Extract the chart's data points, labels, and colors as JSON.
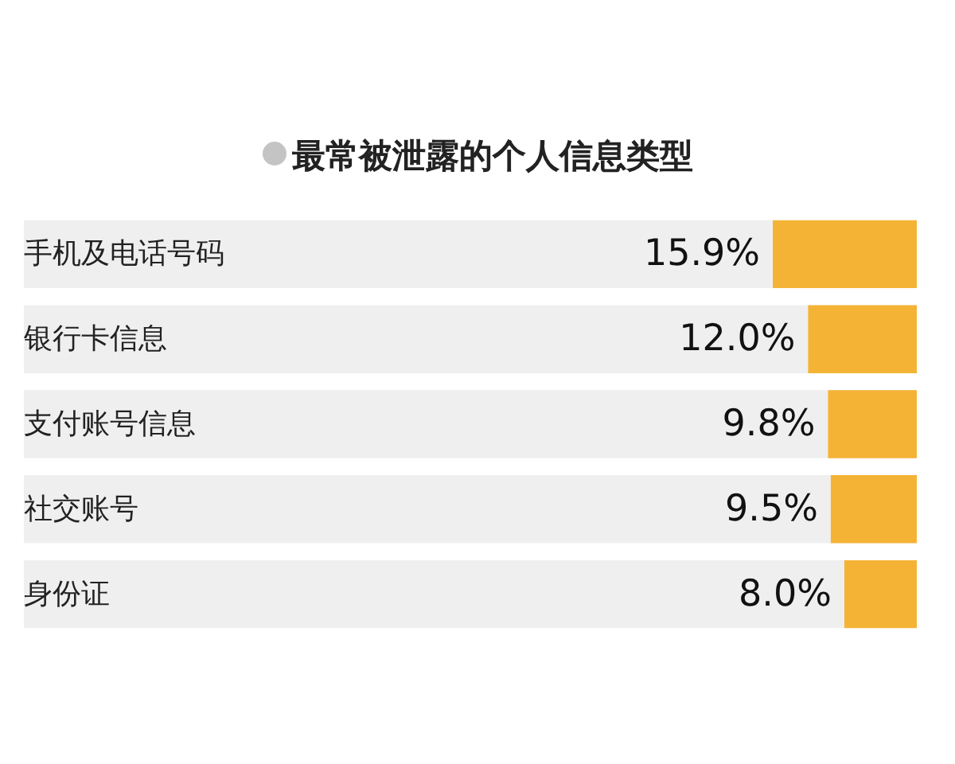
{
  "chart_data": {
    "type": "bar",
    "orientation": "horizontal",
    "title": "最常被泄露的个人信息类型",
    "categories": [
      "手机及电话号码",
      "银行卡信息",
      "支付账号信息",
      "社交账号",
      "身份证"
    ],
    "values": [
      15.9,
      12.0,
      9.8,
      9.5,
      8.0
    ],
    "color": "#f5b335",
    "value_labels": [
      "15.9%",
      "12.0%",
      "9.8%",
      "9.5%",
      "8.0%"
    ]
  }
}
